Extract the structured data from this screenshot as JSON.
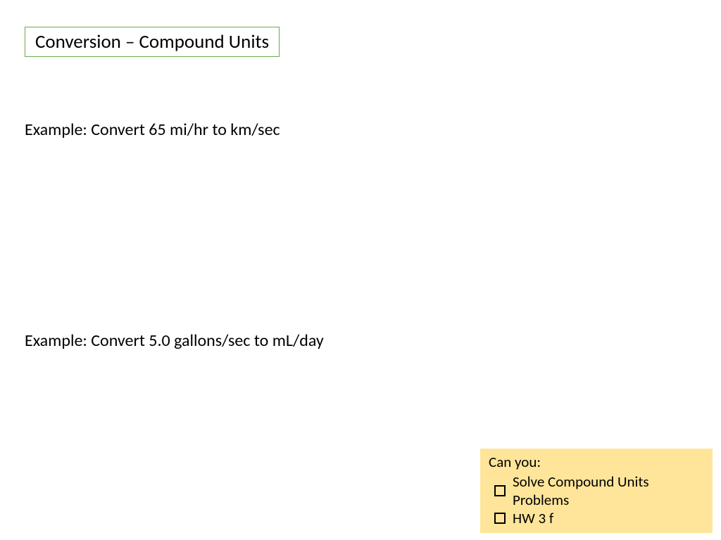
{
  "title": "Conversion – Compound Units",
  "example1": "Example: Convert 65 mi/hr to km/sec",
  "example2": "Example: Convert 5.0 gallons/sec to mL/day",
  "canYou": {
    "heading": "Can you:",
    "items": [
      "Solve Compound Units Problems",
      "HW 3 f"
    ]
  },
  "colors": {
    "title_border": "#6aa84f",
    "can_you_bg": "#ffe599",
    "text": "#000000",
    "background": "#ffffff"
  },
  "fonts": {
    "title_size": 27,
    "body_size": 24,
    "canyou_size": 21
  }
}
